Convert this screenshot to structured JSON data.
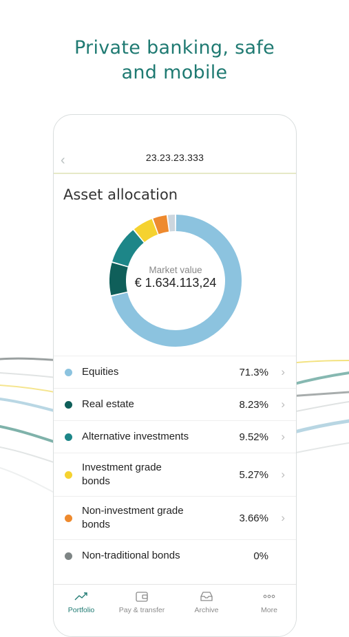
{
  "headline": {
    "line1": "Private banking, safe",
    "line2": "and mobile"
  },
  "nav": {
    "title": "23.23.23.333"
  },
  "section": {
    "title": "Asset allocation"
  },
  "market": {
    "label": "Market value",
    "value": "€ 1.634.113,24"
  },
  "colors": {
    "equities": "#8cc3df",
    "real_estate": "#0f5f5a",
    "alternative": "#1d8688",
    "investment_grade": "#f5d230",
    "non_investment_grade": "#ee8a2e",
    "non_traditional": "#7e8585",
    "other": "#ccd6de",
    "accent": "#1f7a72"
  },
  "allocation": [
    {
      "name": "Equities",
      "pct": "71.3%",
      "value": 71.3,
      "color": "#8cc3df"
    },
    {
      "name": "Real estate",
      "pct": "8.23%",
      "value": 8.23,
      "color": "#0f5f5a"
    },
    {
      "name": "Alternative investments",
      "pct": "9.52%",
      "value": 9.52,
      "color": "#1d8688"
    },
    {
      "name": "Investment grade bonds",
      "pct": "5.27%",
      "value": 5.27,
      "color": "#f5d230"
    },
    {
      "name": "Non-investment grade bonds",
      "pct": "3.66%",
      "value": 3.66,
      "color": "#ee8a2e"
    },
    {
      "name": "Non-traditional bonds",
      "pct": "0%",
      "value": 0,
      "color": "#7e8585"
    }
  ],
  "tabs": [
    {
      "label": "Portfolio",
      "icon": "trend-up-icon",
      "active": true
    },
    {
      "label": "Pay & transfer",
      "icon": "wallet-icon",
      "active": false
    },
    {
      "label": "Archive",
      "icon": "inbox-icon",
      "active": false
    },
    {
      "label": "More",
      "icon": "more-dots-icon",
      "active": false
    }
  ]
}
